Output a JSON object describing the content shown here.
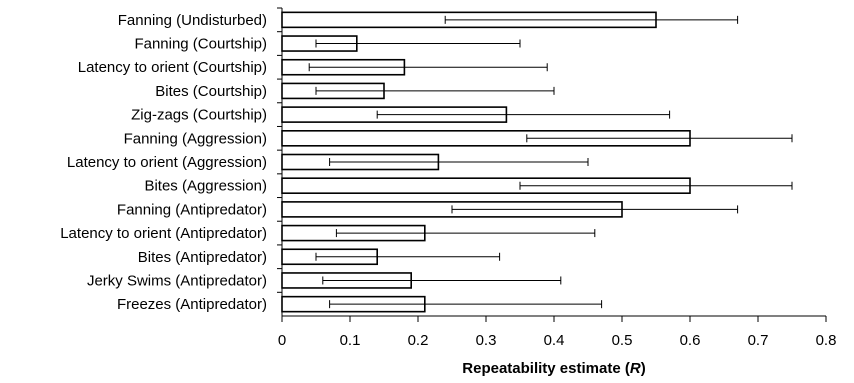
{
  "chart_data": {
    "type": "bar",
    "orientation": "horizontal",
    "categories": [
      "Fanning (Undisturbed)",
      "Fanning (Courtship)",
      "Latency to orient (Courtship)",
      "Bites (Courtship)",
      "Zig-zags (Courtship)",
      "Fanning (Aggression)",
      "Latency to orient (Aggression)",
      "Bites (Aggression)",
      "Fanning (Antipredator)",
      "Latency to orient (Antipredator)",
      "Bites (Antipredator)",
      "Jerky Swims (Antipredator)",
      "Freezes (Antipredator)"
    ],
    "values": [
      0.55,
      0.11,
      0.18,
      0.15,
      0.33,
      0.6,
      0.23,
      0.6,
      0.5,
      0.21,
      0.14,
      0.19,
      0.21
    ],
    "ci_lower": [
      0.24,
      0.05,
      0.04,
      0.05,
      0.14,
      0.36,
      0.07,
      0.35,
      0.25,
      0.08,
      0.05,
      0.06,
      0.07
    ],
    "ci_upper": [
      0.67,
      0.35,
      0.39,
      0.4,
      0.57,
      0.75,
      0.45,
      0.75,
      0.67,
      0.46,
      0.32,
      0.41,
      0.47
    ],
    "xlim": [
      0,
      0.8
    ],
    "xticks": [
      "0",
      "0.1",
      "0.2",
      "0.3",
      "0.4",
      "0.5",
      "0.6",
      "0.7",
      "0.8"
    ],
    "xlabel": "Repeatability estimate",
    "xlabel_symbol": "R",
    "title": "",
    "grid": false,
    "colors": {
      "bar_fill": "#ffffff",
      "bar_stroke": "#000000",
      "axis": "#000000"
    }
  }
}
